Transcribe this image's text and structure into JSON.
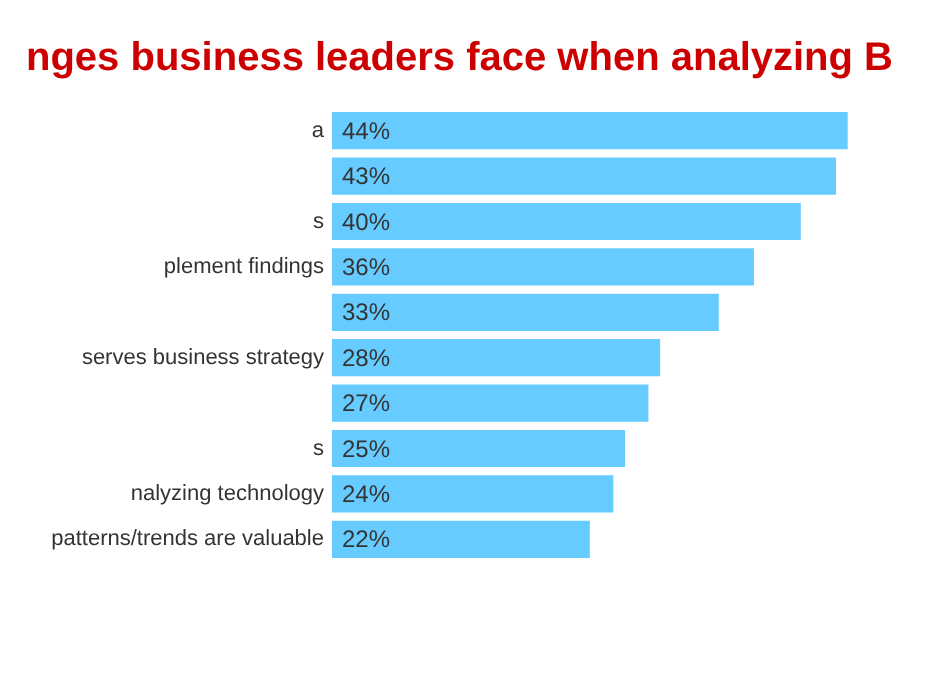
{
  "chart_data": {
    "type": "bar",
    "orientation": "horizontal",
    "title": "nges business leaders face when analyzing B",
    "categories": [
      "a",
      null,
      "s",
      "plement findings",
      null,
      "serves business strategy",
      null,
      "s",
      "nalyzing technology",
      "patterns/trends are valuable"
    ],
    "values": [
      44,
      43,
      40,
      36,
      33,
      28,
      27,
      25,
      24,
      22
    ],
    "value_labels": [
      "44%",
      "43%",
      "40%",
      "36%",
      "33%",
      "28%",
      "27%",
      "25%",
      "24%",
      "22%"
    ],
    "color": "#66ccff"
  }
}
